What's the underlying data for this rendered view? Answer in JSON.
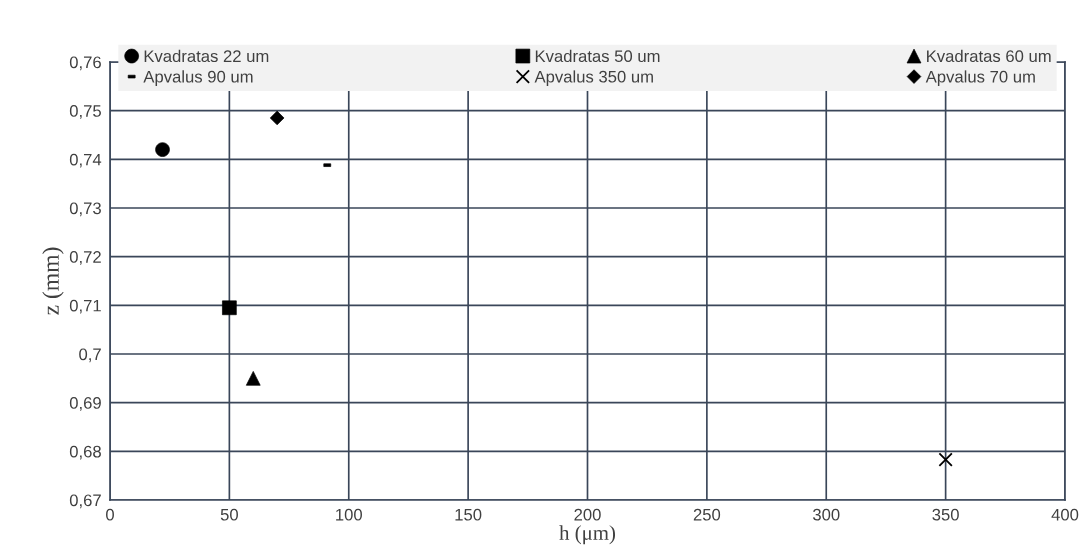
{
  "chart_data": {
    "type": "scatter",
    "xlabel": "h (μm)",
    "ylabel": "z (mm)",
    "xlim": [
      0,
      400
    ],
    "xticks": [
      0,
      50,
      100,
      150,
      200,
      250,
      300,
      350,
      400
    ],
    "ylim": [
      0.67,
      0.76
    ],
    "yticks": [
      {
        "value": 0.67,
        "label": "0,67"
      },
      {
        "value": 0.68,
        "label": "0,68"
      },
      {
        "value": 0.69,
        "label": "0,69"
      },
      {
        "value": 0.7,
        "label": "0,7"
      },
      {
        "value": 0.71,
        "label": "0,71"
      },
      {
        "value": 0.72,
        "label": "0,72"
      },
      {
        "value": 0.73,
        "label": "0,73"
      },
      {
        "value": 0.74,
        "label": "0,74"
      },
      {
        "value": 0.75,
        "label": "0,75"
      },
      {
        "value": 0.76,
        "label": "0,76"
      }
    ],
    "grid": true,
    "legend": "top",
    "series": [
      {
        "name": "Kvadratas 22 um",
        "color": "#000000",
        "marker": "circle",
        "x": [
          22
        ],
        "values": [
          0.742
        ]
      },
      {
        "name": "Kvadratas 50 um",
        "color": "#000000",
        "marker": "square",
        "x": [
          50
        ],
        "values": [
          0.7095
        ]
      },
      {
        "name": "Kvadratas 60 um",
        "color": "#000000",
        "marker": "triangle",
        "x": [
          60
        ],
        "values": [
          0.695
        ]
      },
      {
        "name": "Apvalus 90 um",
        "color": "#000000",
        "x": [
          91
        ],
        "values": [
          0.7388
        ]
      },
      {
        "name": "Apvalus 350 um",
        "color": "#000000",
        "marker": "cross",
        "x": [
          350
        ],
        "values": [
          0.6783
        ]
      },
      {
        "name": "Apvalus 70 um",
        "color": "#000000",
        "marker": "diamond",
        "x": [
          70
        ],
        "values": [
          0.7485
        ]
      }
    ]
  }
}
